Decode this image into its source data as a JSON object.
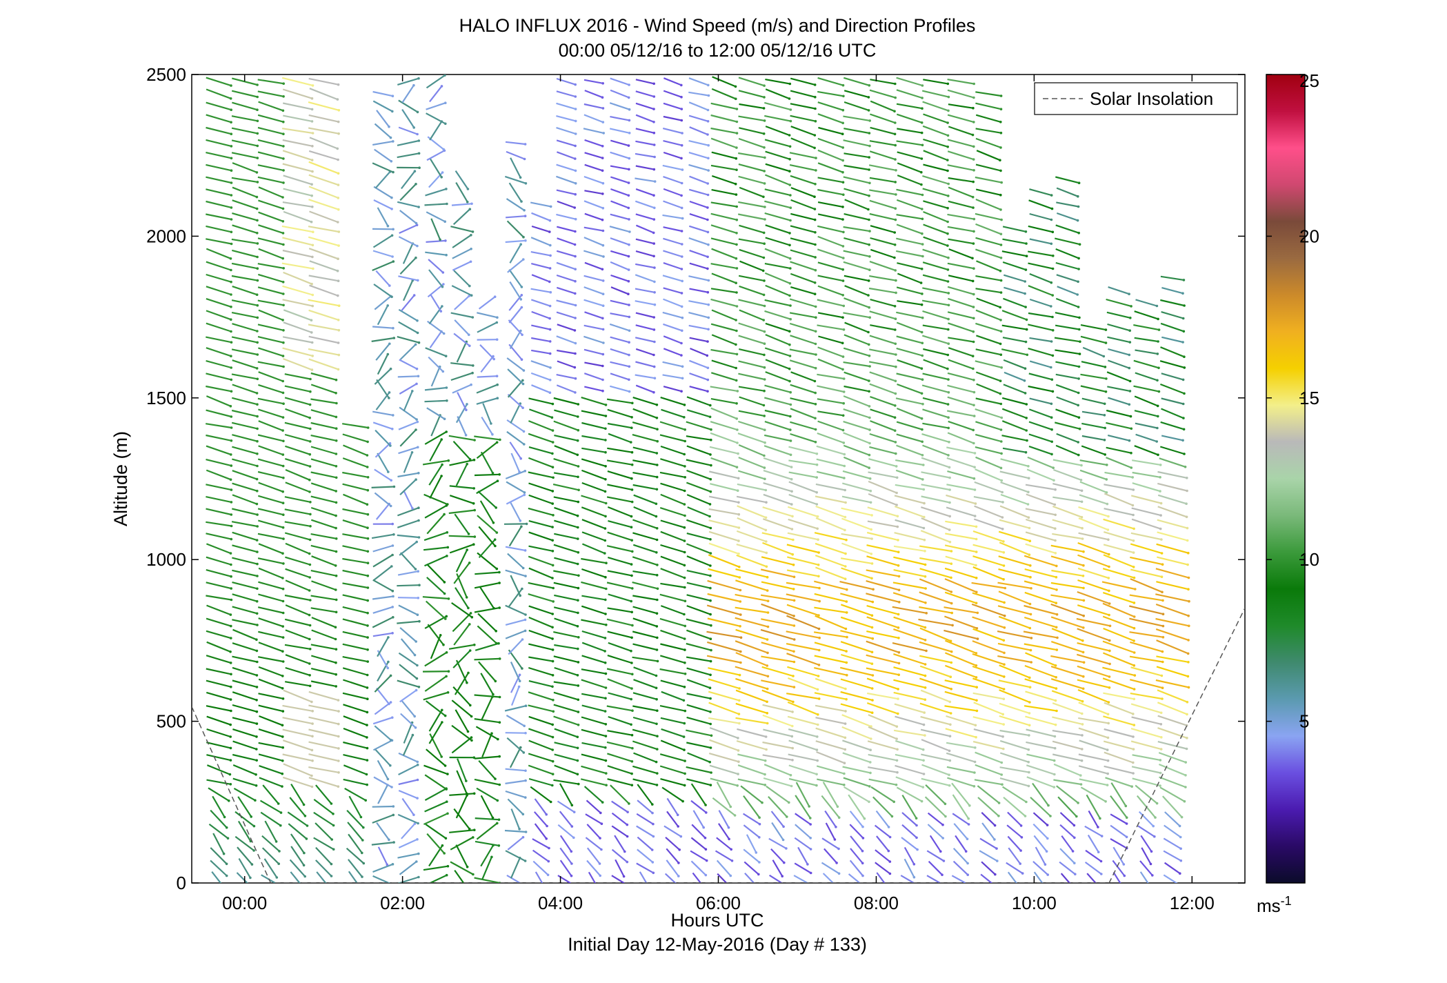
{
  "chart_data": {
    "type": "quiver",
    "title": "HALO INFLUX 2016 - Wind Speed (m/s) and Direction Profiles",
    "subtitle": "00:00 05/12/16 to 12:00 05/12/16  UTC",
    "xlabel": "Hours UTC",
    "xlabel2": "Initial Day 12-May-2016 (Day # 133)",
    "ylabel": "Altitude (m)",
    "xlim": [
      -0.67,
      12.67
    ],
    "ylim": [
      0,
      2500
    ],
    "x_ticks": [
      0,
      2,
      4,
      6,
      8,
      10,
      12
    ],
    "x_tick_labels": [
      "00:00",
      "02:00",
      "04:00",
      "06:00",
      "08:00",
      "10:00",
      "12:00"
    ],
    "y_ticks": [
      0,
      500,
      1000,
      1500,
      2000,
      2500
    ],
    "y_tick_labels": [
      "0",
      "500",
      "1000",
      "1500",
      "2000",
      "2500"
    ],
    "colorbar": {
      "min": 0,
      "max": 25,
      "ticks": [
        5,
        10,
        15,
        20,
        25
      ],
      "tick_labels": [
        "5",
        "10",
        "15",
        "20",
        "25"
      ],
      "unit_base": "ms",
      "unit_exp": "-1"
    },
    "legend": {
      "position": "top-right",
      "entries": [
        {
          "label": "Solar Insolation",
          "style": "dashed",
          "color": "#555555"
        }
      ]
    },
    "solar_insolation": [
      {
        "x": -0.67,
        "y": 545
      },
      {
        "x": 0.33,
        "y": 0
      },
      {
        "x": 10.95,
        "y": 0
      },
      {
        "x": 12.67,
        "y": 850
      }
    ],
    "profile_times_hr": [
      -0.33,
      0.0,
      0.33,
      0.67,
      1.0,
      1.4,
      1.75,
      2.07,
      2.42,
      2.75,
      3.07,
      3.43,
      3.75,
      4.07,
      4.42,
      4.75,
      5.07,
      5.42,
      5.75,
      6.07,
      6.42,
      6.75,
      7.07,
      7.42,
      7.75,
      8.08,
      8.42,
      8.75,
      9.07,
      9.42,
      9.75,
      10.08,
      10.42,
      10.75,
      11.07,
      11.42,
      11.75
    ],
    "profile_tops_m": [
      2500,
      2500,
      2500,
      2500,
      2500,
      1420,
      2450,
      2500,
      2500,
      2200,
      1800,
      2300,
      2100,
      2500,
      2500,
      2500,
      2500,
      2500,
      2500,
      2500,
      2500,
      2500,
      2500,
      2500,
      2500,
      2500,
      2500,
      2500,
      2500,
      2450,
      2050,
      2150,
      2200,
      1750,
      1850,
      1800,
      1900
    ],
    "colors": {
      "axes": "#000000",
      "solar_line": "#555555",
      "colormap": [
        "#0b0b2a",
        "#2a0a66",
        "#4b1bb0",
        "#6a4fe0",
        "#8aa4f2",
        "#5b9ab0",
        "#3f8a6e",
        "#1f8a2a",
        "#0a7a0a",
        "#3b9a3b",
        "#7ab97a",
        "#a9d4a9",
        "#b9b9b9",
        "#f3ef8a",
        "#f5d000",
        "#f0b020",
        "#cc8a2a",
        "#9a6a40",
        "#7a4a3a",
        "#d04870",
        "#ff4f8a",
        "#c01040",
        "#a00010"
      ]
    }
  }
}
